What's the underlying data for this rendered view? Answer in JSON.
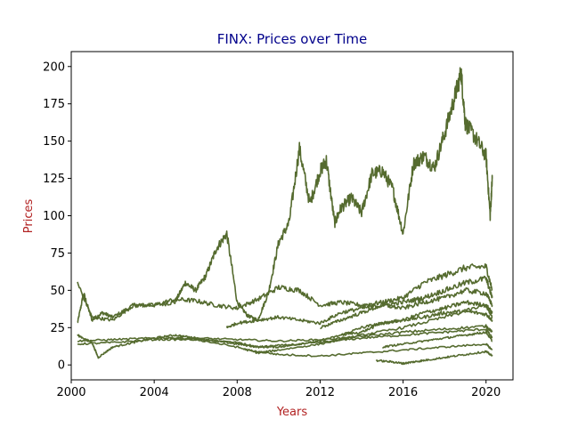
{
  "chart_data": {
    "type": "line",
    "title": "FINX: Prices over Time",
    "xlabel": "Years",
    "ylabel": "Prices",
    "xlim": [
      2000.0,
      2021.3
    ],
    "ylim": [
      -10,
      210
    ],
    "xticks": [
      2000,
      2004,
      2008,
      2012,
      2016,
      2020
    ],
    "yticks": [
      0,
      25,
      50,
      75,
      100,
      125,
      150,
      175,
      200
    ],
    "grid": false,
    "legend": "none",
    "colors": {
      "series": "#556b2f",
      "title": "#00008b",
      "axis_label": "#b22222"
    },
    "series": [
      {
        "x": [
          2000.3,
          2000.6,
          2001.0,
          2001.5,
          2002.0,
          2003.0,
          2004.0,
          2005.0,
          2005.5,
          2006.0,
          2006.5,
          2007.0,
          2007.5,
          2008.0,
          2008.5,
          2009.0,
          2009.5,
          2010.0,
          2010.5,
          2011.0,
          2011.5,
          2012.0,
          2012.3,
          2012.7,
          2013.0,
          2013.5,
          2014.0,
          2014.5,
          2015.0,
          2015.5,
          2016.0,
          2016.5,
          2017.0,
          2017.5,
          2018.0,
          2018.5,
          2018.8,
          2019.0,
          2019.5,
          2020.0,
          2020.2,
          2020.3
        ],
        "y": [
          28,
          48,
          30,
          35,
          32,
          40,
          40,
          42,
          55,
          50,
          60,
          78,
          88,
          42,
          33,
          30,
          48,
          82,
          95,
          145,
          108,
          130,
          137,
          95,
          105,
          112,
          102,
          128,
          130,
          118,
          88,
          135,
          140,
          132,
          155,
          180,
          196,
          162,
          152,
          140,
          100,
          125
        ]
      },
      {
        "x": [
          2000.3,
          2001.0,
          2002.0,
          2003.0,
          2004.0,
          2005.0,
          2006.0,
          2007.0,
          2008.0,
          2009.0,
          2010.0,
          2011.0,
          2012.0,
          2013.0,
          2014.0,
          2015.0,
          2016.0,
          2017.0,
          2018.0,
          2019.0,
          2020.0,
          2020.3
        ],
        "y": [
          55,
          32,
          30,
          40,
          40,
          44,
          43,
          40,
          38,
          44,
          52,
          50,
          40,
          42,
          40,
          42,
          45,
          55,
          60,
          65,
          66,
          50
        ]
      },
      {
        "x": [
          2000.3,
          2001.0,
          2001.3,
          2002.0,
          2003.0,
          2004.0,
          2005.0,
          2006.0,
          2007.0,
          2008.0,
          2009.0,
          2010.0,
          2011.0,
          2012.0,
          2013.0,
          2014.0,
          2015.0,
          2016.0,
          2017.0,
          2018.0,
          2019.0,
          2020.0,
          2020.3
        ],
        "y": [
          20,
          15,
          5,
          12,
          15,
          18,
          20,
          18,
          16,
          14,
          12,
          12,
          14,
          16,
          20,
          25,
          28,
          30,
          32,
          35,
          36,
          34,
          30
        ]
      },
      {
        "x": [
          2000.3,
          2002.0,
          2004.0,
          2006.0,
          2008.0,
          2010.0,
          2012.0,
          2014.0,
          2016.0,
          2018.0,
          2020.0,
          2020.3
        ],
        "y": [
          16,
          17,
          18,
          18,
          17,
          16,
          17,
          19,
          22,
          24,
          26,
          22
        ]
      },
      {
        "x": [
          2000.3,
          2002.0,
          2004.0,
          2006.0,
          2008.0,
          2009.0,
          2010.0,
          2012.0,
          2014.0,
          2016.0,
          2018.0,
          2020.0,
          2020.3
        ],
        "y": [
          14,
          15,
          17,
          17,
          15,
          12,
          13,
          15,
          18,
          20,
          22,
          24,
          18
        ]
      },
      {
        "x": [
          2004.5,
          2006.0,
          2008.0,
          2009.0,
          2010.0,
          2012.0,
          2014.0,
          2016.0,
          2018.0,
          2020.0,
          2020.3
        ],
        "y": [
          18,
          17,
          12,
          8,
          10,
          14,
          20,
          25,
          32,
          40,
          35
        ]
      },
      {
        "x": [
          2007.5,
          2008.0,
          2009.0,
          2010.0,
          2011.0,
          2012.0,
          2013.0,
          2014.0,
          2015.0,
          2016.0,
          2017.0,
          2018.0,
          2019.0,
          2020.0,
          2020.3
        ],
        "y": [
          25,
          28,
          30,
          32,
          30,
          28,
          35,
          38,
          40,
          42,
          45,
          50,
          55,
          58,
          45
        ]
      },
      {
        "x": [
          2008.5,
          2010.0,
          2012.0,
          2014.0,
          2016.0,
          2018.0,
          2020.0,
          2020.3
        ],
        "y": [
          10,
          7,
          6,
          8,
          10,
          12,
          14,
          10
        ]
      },
      {
        "x": [
          2012.0,
          2013.0,
          2014.0,
          2015.0,
          2016.0,
          2017.0,
          2018.0,
          2019.0,
          2020.0,
          2020.3
        ],
        "y": [
          25,
          30,
          35,
          40,
          38,
          42,
          45,
          50,
          48,
          40
        ]
      },
      {
        "x": [
          2013.0,
          2014.0,
          2015.0,
          2016.0,
          2017.0,
          2018.0,
          2019.0,
          2020.0,
          2020.3
        ],
        "y": [
          20,
          22,
          28,
          30,
          35,
          38,
          42,
          40,
          32
        ]
      },
      {
        "x": [
          2014.7,
          2015.5,
          2016.0,
          2016.5,
          2017.0,
          2018.0,
          2019.0,
          2020.0,
          2020.3
        ],
        "y": [
          3,
          2,
          1,
          2,
          3,
          5,
          7,
          9,
          6
        ]
      },
      {
        "x": [
          2015.0,
          2016.0,
          2017.0,
          2018.0,
          2019.0,
          2020.0,
          2020.3
        ],
        "y": [
          12,
          14,
          16,
          18,
          20,
          22,
          16
        ]
      }
    ]
  }
}
